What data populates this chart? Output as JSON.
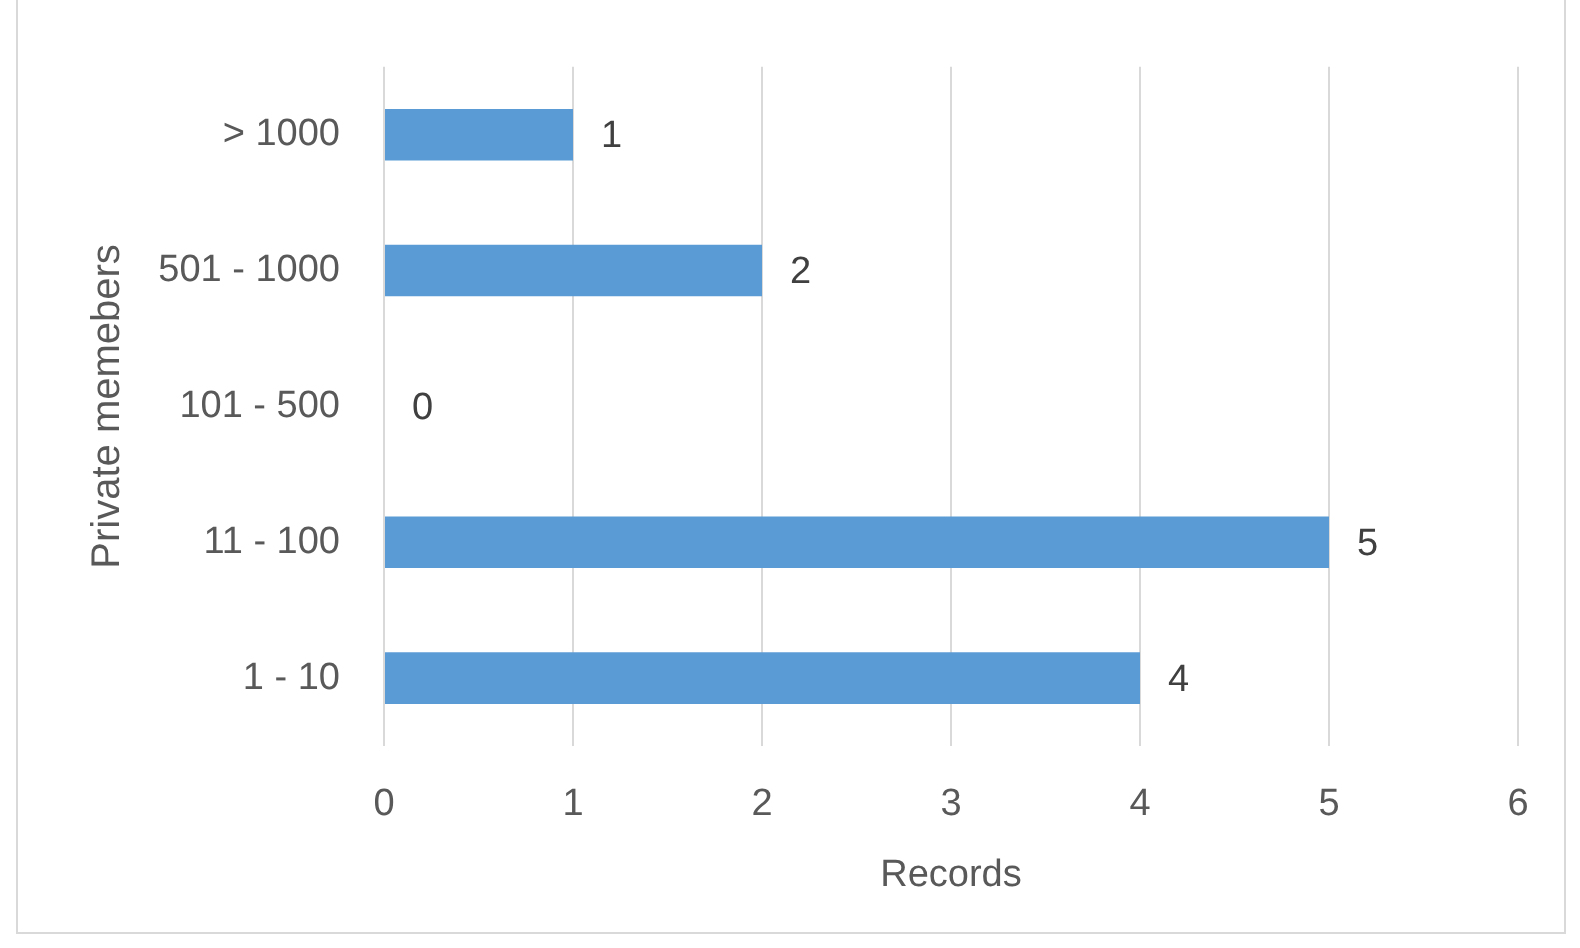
{
  "chart_data": {
    "type": "bar",
    "orientation": "horizontal",
    "categories": [
      "> 1000",
      "501 - 1000",
      "101 - 500",
      "11 - 100",
      "1 - 10"
    ],
    "values": [
      1,
      2,
      0,
      5,
      4
    ],
    "color": "#5b9bd5",
    "xlabel": "Records",
    "ylabel": "Private memebers",
    "xlim": [
      0,
      6
    ],
    "xticks": [
      0,
      1,
      2,
      3,
      4,
      5,
      6
    ],
    "grid": "x",
    "data_labels": true,
    "legend": false
  }
}
